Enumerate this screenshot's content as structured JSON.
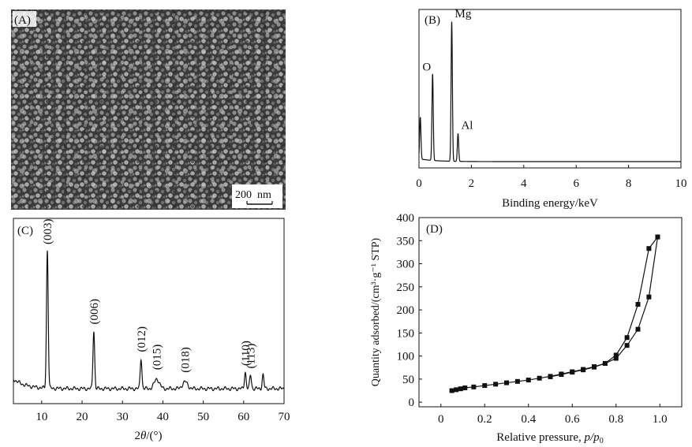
{
  "panel_a": {
    "label": "(A)",
    "scale_bar": "200  nm"
  },
  "chart_data": [
    {
      "type": "line",
      "panel_label": "(B)",
      "xlabel": "Binding energy/keV",
      "ylabel": "",
      "xlim": [
        0,
        10
      ],
      "x_ticks": [
        0,
        2,
        4,
        6,
        8,
        10
      ],
      "y_ticks_shown": false,
      "peaks": [
        {
          "label": "",
          "x": 0.05,
          "height": 0.3
        },
        {
          "label": "O",
          "x": 0.52,
          "height": 0.62
        },
        {
          "label": "Mg",
          "x": 1.25,
          "height": 1.0
        },
        {
          "label": "Al",
          "x": 1.49,
          "height": 0.2
        }
      ]
    },
    {
      "type": "line",
      "panel_label": "(C)",
      "xlabel_main": "2",
      "xlabel_italic": "θ",
      "xlabel_rest": "/(°)",
      "xlim": [
        3,
        70
      ],
      "x_ticks": [
        10,
        20,
        30,
        40,
        50,
        60,
        70
      ],
      "y_ticks_shown": false,
      "peaks": [
        {
          "label": "(003)",
          "x": 11.4,
          "height": 1.0
        },
        {
          "label": "(006)",
          "x": 22.9,
          "height": 0.42
        },
        {
          "label": "(012)",
          "x": 34.6,
          "height": 0.22
        },
        {
          "label": "(015)",
          "x": 38.5,
          "height": 0.07
        },
        {
          "label": "(018)",
          "x": 45.5,
          "height": 0.05
        },
        {
          "label": "(110)",
          "x": 60.4,
          "height": 0.12
        },
        {
          "label": "(113)",
          "x": 61.7,
          "height": 0.1
        },
        {
          "label": "",
          "x": 64.8,
          "height": 0.1
        }
      ]
    },
    {
      "type": "scatter",
      "panel_label": "(D)",
      "xlabel": "Relative pressure, ",
      "xlabel_italic": "p/p",
      "xlabel_sub": "0",
      "ylabel": "Quantity adsorbed/(cm³·g⁻¹ STP)",
      "xlim": [
        -0.1,
        1.1
      ],
      "ylim": [
        -10,
        400
      ],
      "x_ticks": [
        0,
        0.2,
        0.4,
        0.6,
        0.8,
        1.0
      ],
      "y_ticks": [
        0,
        50,
        100,
        150,
        200,
        250,
        300,
        350,
        400
      ],
      "series": [
        {
          "x": [
            0.05,
            0.07,
            0.09,
            0.11,
            0.15,
            0.2,
            0.25,
            0.3,
            0.35,
            0.4,
            0.45,
            0.5,
            0.55,
            0.6,
            0.65,
            0.7,
            0.75,
            0.8,
            0.85,
            0.9,
            0.95,
            0.99
          ],
          "y": [
            25,
            27,
            29,
            31,
            33,
            36,
            39,
            42,
            45,
            48,
            52,
            56,
            61,
            66,
            71,
            77,
            84,
            95,
            123,
            158,
            228,
            358
          ]
        },
        {
          "x": [
            0.99,
            0.95,
            0.9,
            0.85,
            0.8,
            0.75,
            0.7,
            0.65,
            0.6,
            0.55,
            0.5
          ],
          "y": [
            358,
            333,
            212,
            140,
            102,
            84,
            76,
            70,
            65,
            60,
            55
          ]
        }
      ]
    }
  ]
}
